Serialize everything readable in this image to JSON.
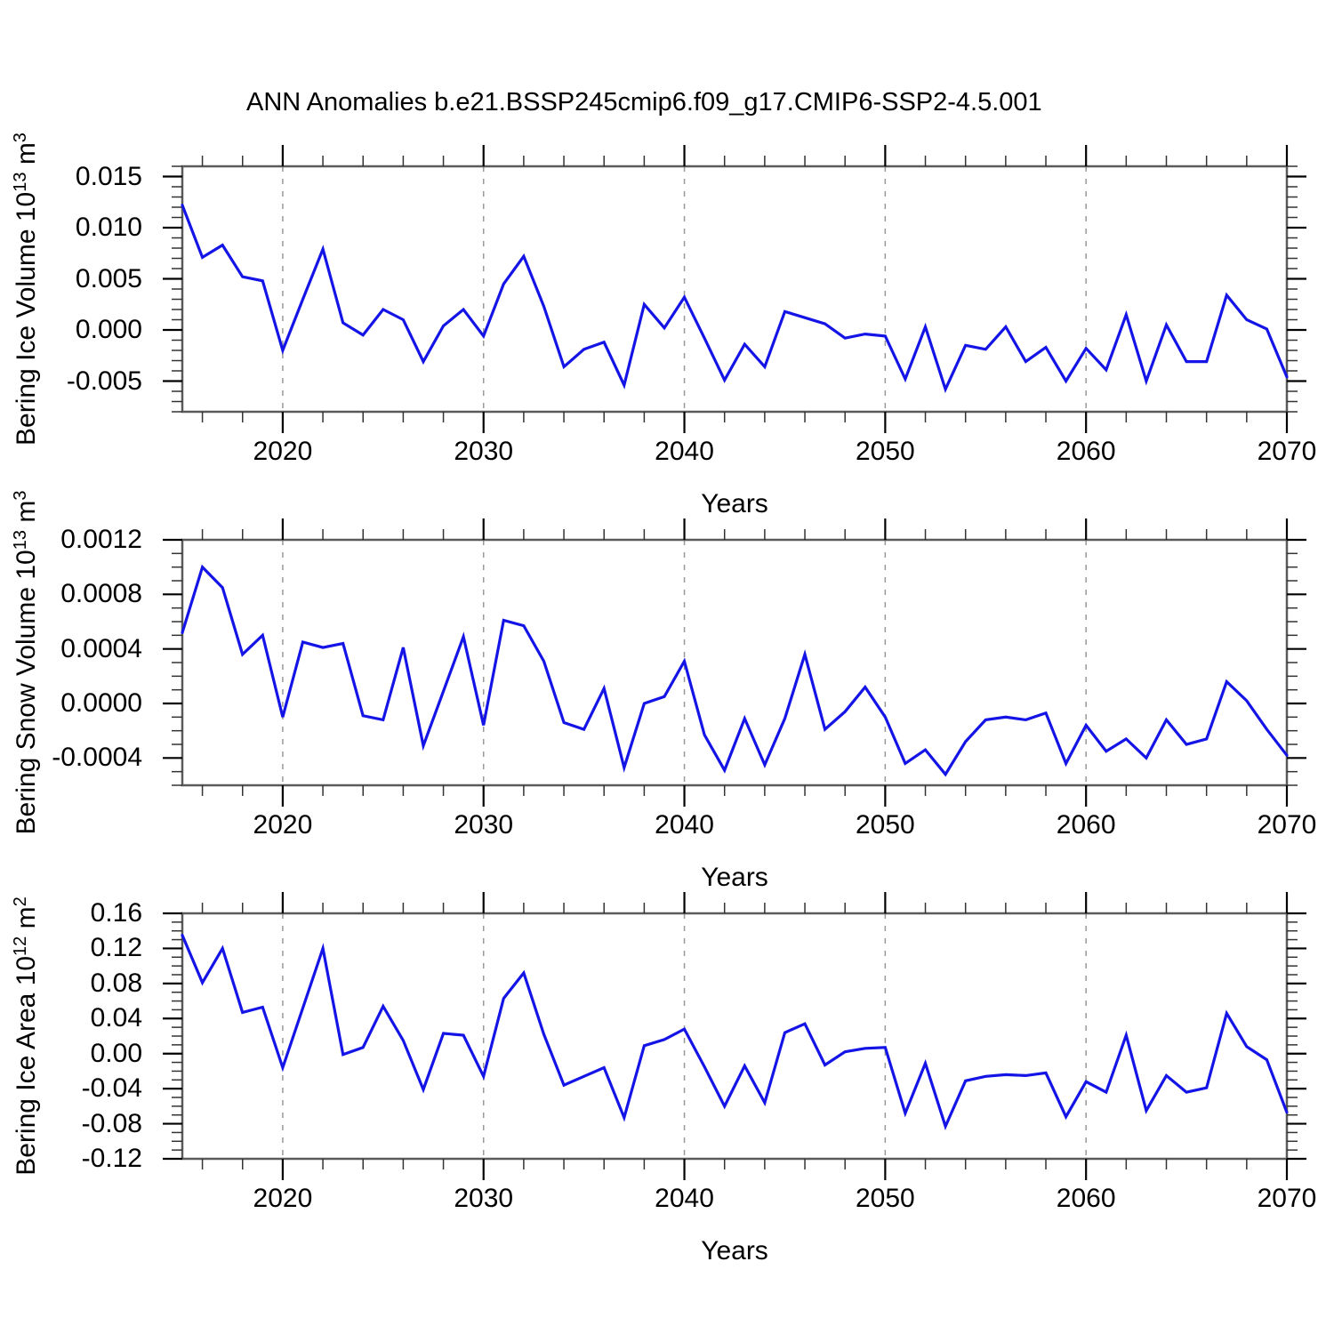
{
  "title": "ANN Anomalies b.e21.BSSP245cmip6.f09_g17.CMIP6-SSP2-4.5.001",
  "xlabel": "Years",
  "colors": {
    "line": "#1414e6",
    "grid": "#999999",
    "frame": "#5a5a5a",
    "tick_major": "#000000",
    "tick_minor": "#333333"
  },
  "x_axis": {
    "start_year": 2015,
    "end_year": 2070,
    "major_ticks": [
      2020,
      2030,
      2040,
      2050,
      2060,
      2070
    ],
    "minor_tick_step": 2,
    "gridline_years": [
      2020,
      2030,
      2040,
      2050,
      2060
    ]
  },
  "years": [
    2015,
    2016,
    2017,
    2018,
    2019,
    2020,
    2021,
    2022,
    2023,
    2024,
    2025,
    2026,
    2027,
    2028,
    2029,
    2030,
    2031,
    2032,
    2033,
    2034,
    2035,
    2036,
    2037,
    2038,
    2039,
    2040,
    2041,
    2042,
    2043,
    2044,
    2045,
    2046,
    2047,
    2048,
    2049,
    2050,
    2051,
    2052,
    2053,
    2054,
    2055,
    2056,
    2057,
    2058,
    2059,
    2060,
    2061,
    2062,
    2063,
    2064,
    2065,
    2066,
    2067,
    2068,
    2069,
    2070
  ],
  "chart_data": [
    {
      "type": "line",
      "name": "bering-ice-volume",
      "ylabel": "Bering Ice Volume 10^13 m^3",
      "ylabel_parts": [
        [
          "Bering Ice Volume 10",
          false
        ],
        [
          "13",
          true
        ],
        [
          " m",
          false
        ],
        [
          "3",
          true
        ]
      ],
      "ylim": [
        -0.008,
        0.016
      ],
      "y_major_ticks": [
        0.015,
        0.01,
        0.005,
        0.0,
        -0.005
      ],
      "y_minor_step": 0.001,
      "tick_decimals": 3,
      "grid": true,
      "legend": "none",
      "values": [
        0.0122,
        0.0071,
        0.0083,
        0.0052,
        0.0048,
        -0.002,
        0.003,
        0.0079,
        0.0007,
        -0.0005,
        0.002,
        0.001,
        -0.0031,
        0.0004,
        0.002,
        -0.0006,
        0.0045,
        0.0072,
        0.0023,
        -0.0036,
        -0.0019,
        -0.0012,
        -0.0054,
        0.0025,
        0.0002,
        0.0032,
        -0.0008,
        -0.0049,
        -0.0014,
        -0.0036,
        0.0018,
        0.0012,
        0.0006,
        -0.0008,
        -0.0004,
        -0.0006,
        -0.0048,
        0.0003,
        -0.0058,
        -0.0015,
        -0.0019,
        0.0003,
        -0.0031,
        -0.0017,
        -0.005,
        -0.0018,
        -0.0039,
        0.0015,
        -0.005,
        0.0005,
        -0.0031,
        -0.0031,
        0.0034,
        0.001,
        0.0001,
        -0.0046
      ]
    },
    {
      "type": "line",
      "name": "bering-snow-volume",
      "ylabel": "Bering Snow Volume 10^13 m^3",
      "ylabel_parts": [
        [
          "Bering Snow Volume 10",
          false
        ],
        [
          "13",
          true
        ],
        [
          " m",
          false
        ],
        [
          "3",
          true
        ]
      ],
      "ylim": [
        -0.0006,
        0.0012
      ],
      "y_major_ticks": [
        0.0012,
        0.0008,
        0.0004,
        0.0,
        -0.0004
      ],
      "y_minor_step": 0.0001,
      "tick_decimals": 4,
      "grid": true,
      "legend": "none",
      "values": [
        0.00052,
        0.001,
        0.00085,
        0.00036,
        0.0005,
        -0.0001,
        0.00045,
        0.00041,
        0.00044,
        -9e-05,
        -0.00012,
        0.00041,
        -0.00031,
        9e-05,
        0.00049,
        -0.00016,
        0.00061,
        0.00057,
        0.00031,
        -0.00014,
        -0.00019,
        0.00011,
        -0.00047,
        0.0,
        5e-05,
        0.00031,
        -0.00023,
        -0.00049,
        -0.00011,
        -0.00045,
        -0.00011,
        0.00036,
        -0.00019,
        -6e-05,
        0.00012,
        -0.0001,
        -0.00044,
        -0.00034,
        -0.00052,
        -0.00028,
        -0.00012,
        -0.0001,
        -0.00012,
        -7e-05,
        -0.00044,
        -0.00016,
        -0.00035,
        -0.00026,
        -0.0004,
        -0.00012,
        -0.0003,
        -0.00026,
        0.00016,
        2e-05,
        -0.00019,
        -0.00038
      ]
    },
    {
      "type": "line",
      "name": "bering-ice-area",
      "ylabel": "Bering Ice Area 10^12 m^2",
      "ylabel_parts": [
        [
          "Bering Ice Area 10",
          false
        ],
        [
          "12",
          true
        ],
        [
          " m",
          false
        ],
        [
          "2",
          true
        ]
      ],
      "ylim": [
        -0.12,
        0.16
      ],
      "y_major_ticks": [
        0.16,
        0.12,
        0.08,
        0.04,
        0.0,
        -0.04,
        -0.08,
        -0.12
      ],
      "y_minor_step": 0.01,
      "tick_decimals": 2,
      "grid": true,
      "legend": "none",
      "values": [
        0.135,
        0.081,
        0.12,
        0.047,
        0.053,
        -0.016,
        0.052,
        0.12,
        -0.001,
        0.007,
        0.054,
        0.015,
        -0.041,
        0.023,
        0.021,
        -0.026,
        0.063,
        0.092,
        0.022,
        -0.036,
        -0.026,
        -0.016,
        -0.073,
        0.009,
        0.016,
        0.028,
        -0.015,
        -0.06,
        -0.014,
        -0.056,
        0.024,
        0.034,
        -0.013,
        0.002,
        0.006,
        0.007,
        -0.068,
        -0.011,
        -0.083,
        -0.031,
        -0.026,
        -0.024,
        -0.025,
        -0.022,
        -0.072,
        -0.032,
        -0.044,
        0.021,
        -0.065,
        -0.025,
        -0.044,
        -0.039,
        0.046,
        0.008,
        -0.007,
        -0.067
      ]
    }
  ]
}
